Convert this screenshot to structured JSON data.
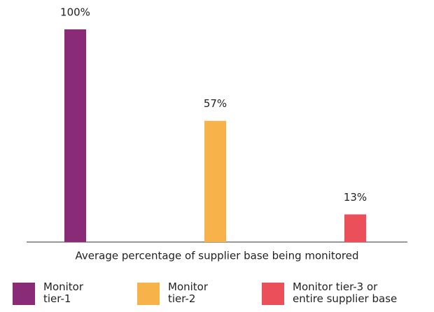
{
  "chart_data": {
    "type": "bar",
    "categories": [
      "Monitor tier-1",
      "Monitor tier-2",
      "Monitor tier-3 or entire supplier base"
    ],
    "values": [
      100,
      57,
      13
    ],
    "value_labels": [
      "100%",
      "57%",
      "13%"
    ],
    "colors": [
      "#8a2b78",
      "#f8b24a",
      "#eb4f5a"
    ],
    "xlabel": "Average percentage of supplier base being monitored",
    "ylim": [
      0,
      100
    ]
  }
}
